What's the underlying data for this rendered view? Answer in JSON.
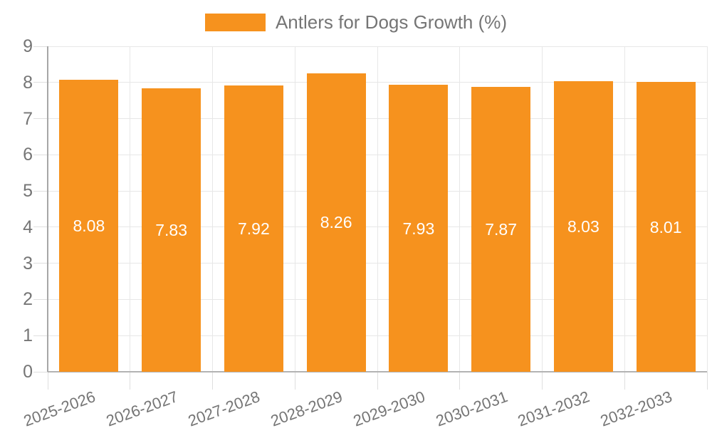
{
  "legend": {
    "label": "Antlers for Dogs Growth (%)"
  },
  "colors": {
    "bar": "#F6921E",
    "grid": "#E7E7E7",
    "tick": "#DFDFDF",
    "y_axis": "#A6A6A6",
    "x_baseline": "#B3B3B3",
    "text": "#757575",
    "value_label": "#FFFFFF",
    "background": "#FFFFFF"
  },
  "chart_data": {
    "type": "bar",
    "title": "Antlers for Dogs Growth (%)",
    "categories": [
      "2025-2026",
      "2026-2027",
      "2027-2028",
      "2028-2029",
      "2029-2030",
      "2030-2031",
      "2031-2032",
      "2032-2033"
    ],
    "values": [
      8.08,
      7.83,
      7.92,
      8.26,
      7.93,
      7.87,
      8.03,
      8.01
    ],
    "value_labels": [
      "8.08",
      "7.83",
      "7.92",
      "8.26",
      "7.93",
      "7.87",
      "8.03",
      "8.01"
    ],
    "xlabel": "",
    "ylabel": "",
    "ylim": [
      0,
      9
    ],
    "yticks": [
      0,
      1,
      2,
      3,
      4,
      5,
      6,
      7,
      8,
      9
    ],
    "grid": true,
    "legend_position": "top",
    "x_label_rotation_deg": -20,
    "value_label_position": "inside-center"
  }
}
